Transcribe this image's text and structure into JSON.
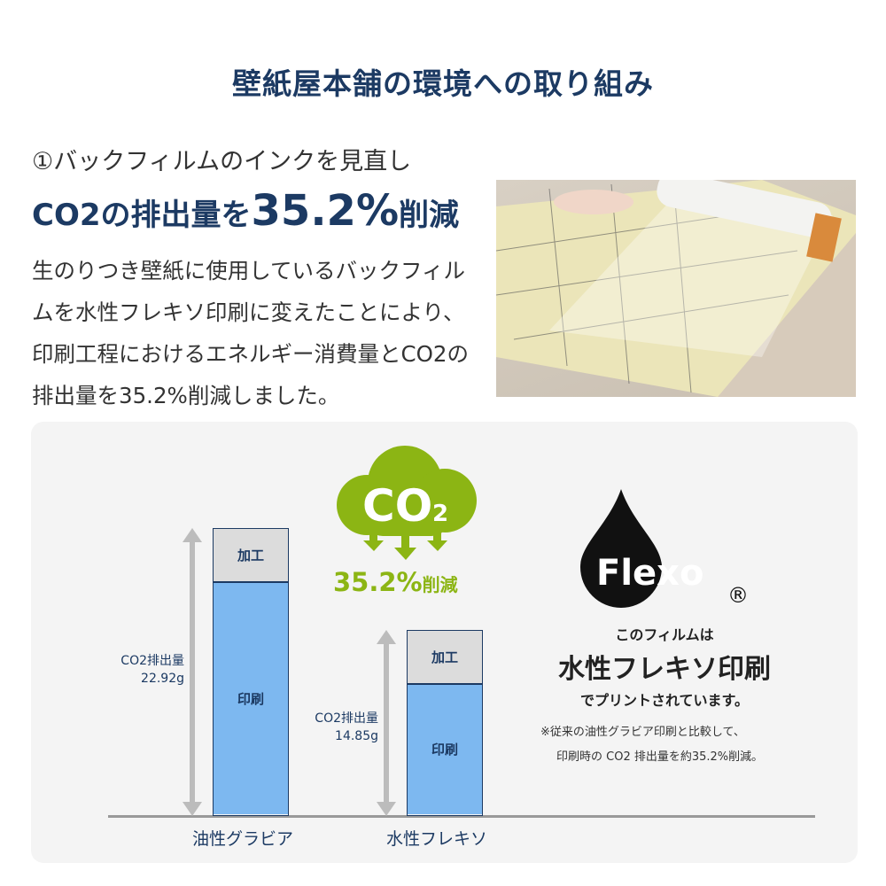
{
  "title": "壁紙屋本舗の環境への取り組み",
  "section": {
    "subtitle": "①バックフィルムのインクを見直し",
    "headline_pre": "CO2の排出量を",
    "headline_value": "35.2%",
    "headline_post": "削減",
    "body": "生のりつき壁紙に使用しているバックフィルムを水性フレキソ印刷に変えたことにより、印刷工程におけるエネルギー消費量とCO2の排出量を35.2%削減しました。"
  },
  "badge": {
    "cloud_text": "CO",
    "cloud_sub": "2",
    "reduction": "35.2%",
    "reduction_suffix": "削減",
    "color": "#8cb514"
  },
  "chart_data": {
    "type": "bar",
    "stacked": true,
    "categories": [
      "油性グラビア",
      "水性フレキソ"
    ],
    "segment_labels": [
      "印刷",
      "加工"
    ],
    "totals_label": "CO2排出量",
    "totals": [
      22.92,
      14.85
    ],
    "totals_text": [
      "22.92g",
      "14.85g"
    ],
    "colors": {
      "print": "#7db8f0",
      "process": "#dcdcdc"
    }
  },
  "flexo": {
    "logo_text": "Flexo",
    "registered": "®",
    "line1": "このフィルムは",
    "line2": "水性フレキソ印刷",
    "line3": "でプリントされています。",
    "note1": "※従来の油性グラビア印刷と比較して、",
    "note2": "印刷時の CO2 排出量を約35.2%削減。"
  }
}
